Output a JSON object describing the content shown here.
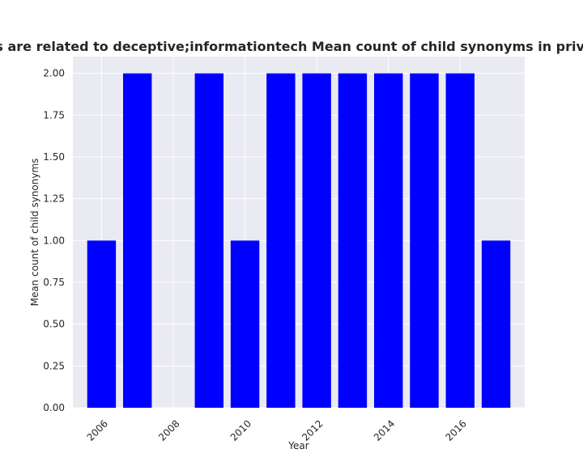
{
  "chart_data": {
    "type": "bar",
    "title": "egories are related to deceptive;informationtech Mean count of child synonyms in privacy polic",
    "xlabel": "Year",
    "ylabel": "Mean count of child synonyms",
    "x": [
      2006,
      2007,
      2009,
      2010,
      2011,
      2012,
      2013,
      2014,
      2015,
      2016,
      2017
    ],
    "values": [
      1,
      2,
      2,
      1,
      2,
      2,
      2,
      2,
      2,
      2,
      1
    ],
    "xlim": [
      2005.2,
      2017.8
    ],
    "ylim": [
      0,
      2.1
    ],
    "xticks": [
      "2006",
      "2008",
      "2010",
      "2012",
      "2014",
      "2016"
    ],
    "yticks": [
      "0.00",
      "0.25",
      "0.50",
      "0.75",
      "1.00",
      "1.25",
      "1.50",
      "1.75",
      "2.00"
    ],
    "grid": true,
    "bar_color": "#0000ff",
    "background_color": "#eaeaf2",
    "grid_color": "#ffffff"
  }
}
